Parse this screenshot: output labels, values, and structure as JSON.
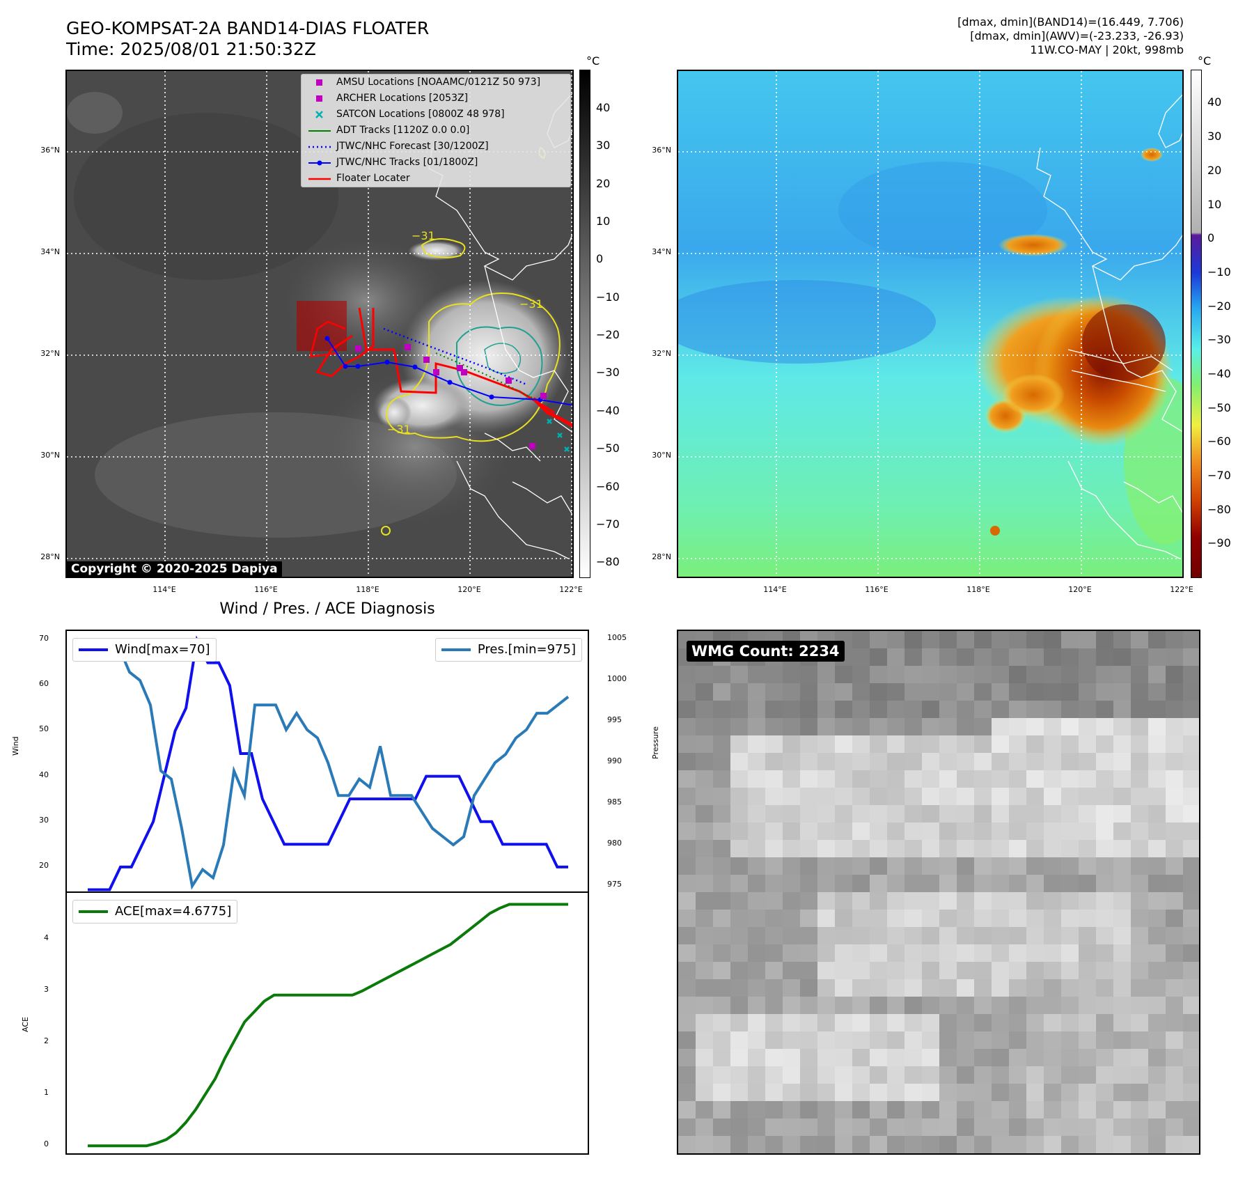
{
  "header": {
    "title_line1": "GEO-KOMPSAT-2A BAND14-DIAS FLOATER",
    "title_line2": "Time: 2025/08/01 21:50:32Z",
    "stats_line1": "[dmax, dmin](BAND14)=(16.449, 7.706)",
    "stats_line2": "[dmax, dmin](AWV)=(-23.233, -26.93)",
    "stats_line3": "11W.CO-MAY | 20kt, 998mb"
  },
  "map": {
    "lat_ticks": [
      "36°N",
      "34°N",
      "32°N",
      "30°N",
      "28°N"
    ],
    "lon_ticks": [
      "114°E",
      "116°E",
      "118°E",
      "120°E",
      "122°E"
    ],
    "unit": "°C",
    "copyright": "Copyright © 2020-2025 Dapiya",
    "contour_label": "−31",
    "legend": [
      {
        "label": "AMSU Locations [NOAAMC/0121Z 50 973]",
        "color": "#c000c0",
        "symbol": "square"
      },
      {
        "label": "ARCHER Locations [2053Z]",
        "color": "#c000c0",
        "symbol": "square"
      },
      {
        "label": "SATCON Locations [0800Z 48 978]",
        "color": "#00b0b0",
        "symbol": "x"
      },
      {
        "label": "ADT Tracks [1120Z 0.0 0.0]",
        "color": "#008000",
        "symbol": "line"
      },
      {
        "label": "JTWC/NHC Forecast [30/1200Z]",
        "color": "#0000ff",
        "symbol": "dotted"
      },
      {
        "label": "JTWC/NHC Tracks [01/1800Z]",
        "color": "#0000ff",
        "symbol": "line-dot"
      },
      {
        "label": "Floater Locater",
        "color": "#ff0000",
        "symbol": "line"
      }
    ],
    "cbar_gray_ticks": [
      "40",
      "30",
      "20",
      "10",
      "0",
      "−10",
      "−20",
      "−30",
      "−40",
      "−50",
      "−60",
      "−70",
      "−80"
    ],
    "cbar_color_ticks": [
      "40",
      "30",
      "20",
      "10",
      "0",
      "−10",
      "−20",
      "−30",
      "−40",
      "−50",
      "−60",
      "−70",
      "−80",
      "−90"
    ]
  },
  "diag": {
    "title": "Wind / Pres. / ACE Diagnosis",
    "wind_ylabel": "Wind",
    "pres_ylabel": "Pressure",
    "ace_ylabel": "ACE",
    "wind_legend": "Wind[max=70]",
    "pres_legend": "Pres.[min=975]",
    "ace_legend": "ACE[max=4.6775]",
    "wind_ticks": [
      "70",
      "60",
      "50",
      "40",
      "30",
      "20"
    ],
    "pres_ticks": [
      "1005",
      "1000",
      "995",
      "990",
      "985",
      "980",
      "975"
    ],
    "ace_ticks": [
      "4",
      "3",
      "2",
      "1",
      "0"
    ],
    "wmg": "WMG Count: 2234"
  },
  "colors": {
    "wind": "#1010ee",
    "pressure": "#2a7ab8",
    "ace": "#0a7a0a",
    "track_red": "#ff0000"
  },
  "chart_data": [
    {
      "type": "line",
      "title": "",
      "ylabel": "Wind",
      "ylim": [
        14,
        72
      ],
      "series": [
        {
          "name": "Wind[max=70]",
          "values": [
            15,
            15,
            15,
            20,
            20,
            25,
            30,
            40,
            50,
            55,
            70,
            65,
            65,
            60,
            45,
            45,
            35,
            30,
            25,
            25,
            25,
            25,
            25,
            30,
            35,
            35,
            35,
            35,
            35,
            35,
            35,
            40,
            40,
            40,
            40,
            35,
            30,
            30,
            25,
            25,
            25,
            25,
            25,
            20,
            20
          ]
        }
      ]
    },
    {
      "type": "line",
      "ylabel": "Pressure",
      "ylim": [
        974,
        1006
      ],
      "series": [
        {
          "name": "Pres.[min=975]",
          "values": [
            1004,
            1004,
            1004,
            1004,
            1001,
            1000,
            997,
            989,
            988,
            982,
            975,
            977,
            976,
            980,
            989,
            986,
            997,
            997,
            997,
            994,
            996,
            994,
            993,
            990,
            986,
            986,
            988,
            987,
            992,
            986,
            986,
            986,
            984,
            982,
            981,
            980,
            981,
            986,
            988,
            990,
            991,
            993,
            994,
            996,
            996,
            997,
            998
          ]
        }
      ]
    },
    {
      "type": "line",
      "ylabel": "ACE",
      "ylim": [
        -0.2,
        4.9
      ],
      "series": [
        {
          "name": "ACE[max=4.6775]",
          "values": [
            0,
            0,
            0,
            0,
            0,
            0,
            0,
            0.05,
            0.12,
            0.25,
            0.45,
            0.7,
            1.0,
            1.3,
            1.7,
            2.05,
            2.4,
            2.6,
            2.8,
            2.92,
            2.92,
            2.92,
            2.92,
            2.92,
            2.92,
            2.92,
            2.92,
            2.92,
            3.0,
            3.1,
            3.2,
            3.3,
            3.4,
            3.5,
            3.6,
            3.7,
            3.8,
            3.9,
            4.05,
            4.2,
            4.35,
            4.5,
            4.6,
            4.6775,
            4.6775,
            4.6775,
            4.6775,
            4.6775,
            4.6775,
            4.6775
          ]
        }
      ]
    }
  ]
}
